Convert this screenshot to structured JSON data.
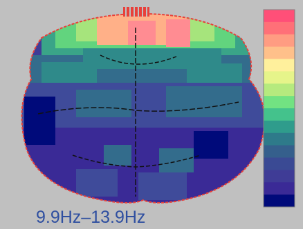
{
  "frequency_band_label": "9.9Hz–13.9Hz",
  "colors": {
    "background": "#c0c0c0",
    "outline": "#e8403a",
    "label": "#2f4fa0",
    "colorbar_scale": [
      "#ff4f78",
      "#ff7078",
      "#ff9c82",
      "#ffc08a",
      "#fff09c",
      "#e6f48a",
      "#b6ea7e",
      "#72e282",
      "#44c28c",
      "#2f9c8c",
      "#2e7a8a",
      "#355f8c",
      "#3a4a94",
      "#3f3c96",
      "#3a2a96",
      "#000a7a"
    ],
    "map_palette": [
      "#000a7a",
      "#3a2a96",
      "#3f3c96",
      "#3f4b9a",
      "#336c8c",
      "#2f8a8a",
      "#3aa488",
      "#62d47e",
      "#a6e47c",
      "#ffb088",
      "#ff8c92"
    ]
  }
}
